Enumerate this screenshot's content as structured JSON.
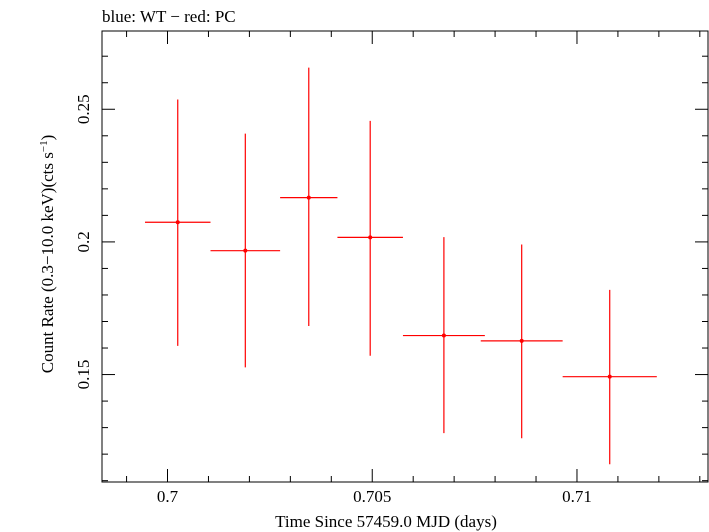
{
  "chart_data": {
    "type": "scatter",
    "title": "blue: WT − red: PC",
    "xlabel": "Time Since 57459.0 MJD (days)",
    "ylabel_main": "Count Rate (0.3−10.0 keV)(cts s",
    "ylabel_sup": "−1",
    "ylabel_close": ")",
    "xlim": [
      0.6984,
      0.7132
    ],
    "ylim": [
      0.1095,
      0.2795
    ],
    "x_ticks": [
      {
        "value": 0.7,
        "label": "0.7"
      },
      {
        "value": 0.705,
        "label": "0.705"
      },
      {
        "value": 0.71,
        "label": "0.71"
      }
    ],
    "y_ticks": [
      {
        "value": 0.15,
        "label": "0.15"
      },
      {
        "value": 0.2,
        "label": "0.2"
      },
      {
        "value": 0.25,
        "label": "0.25"
      }
    ],
    "x_minor_step": 0.001,
    "y_minor_step": 0.01,
    "series": [
      {
        "color": "#ff0000",
        "points": [
          {
            "x": 0.70025,
            "y": 0.2074,
            "xerr": 0.0008,
            "ylo": 0.1608,
            "yhi": 0.2537
          },
          {
            "x": 0.7019,
            "y": 0.1967,
            "xerr": 0.00085,
            "ylo": 0.1527,
            "yhi": 0.2408
          },
          {
            "x": 0.70345,
            "y": 0.2167,
            "xerr": 0.0007,
            "ylo": 0.1683,
            "yhi": 0.2657
          },
          {
            "x": 0.70495,
            "y": 0.2017,
            "xerr": 0.0008,
            "ylo": 0.1571,
            "yhi": 0.2456
          },
          {
            "x": 0.70675,
            "y": 0.1647,
            "xerr": 0.001,
            "ylo": 0.1279,
            "yhi": 0.2018
          },
          {
            "x": 0.70865,
            "y": 0.1627,
            "xerr": 0.001,
            "ylo": 0.126,
            "yhi": 0.199
          },
          {
            "x": 0.7108,
            "y": 0.1492,
            "xerr": 0.00115,
            "ylo": 0.1162,
            "yhi": 0.1819
          }
        ]
      }
    ]
  }
}
